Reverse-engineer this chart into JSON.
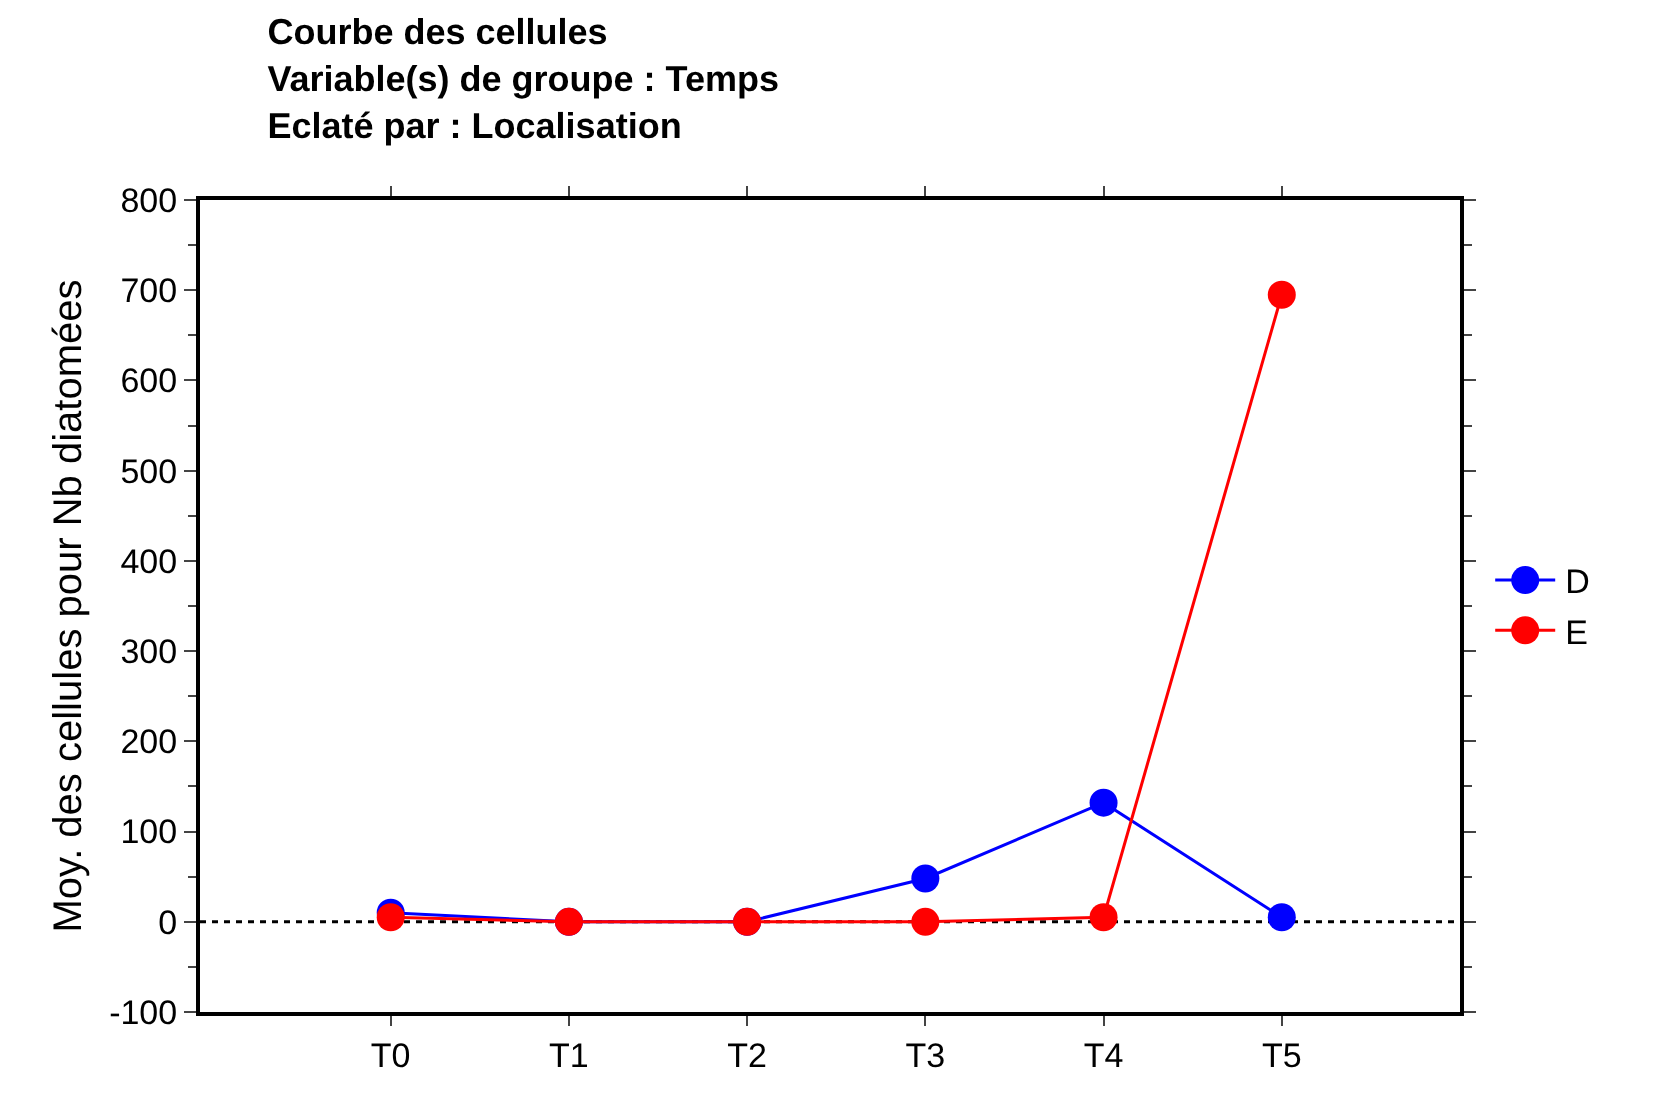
{
  "chart_data": {
    "type": "line",
    "title": "Courbe des cellules\nVariable(s) de groupe : Temps\nEclaté par : Localisation",
    "ylabel": "Moy. des cellules pour Nb diatomées",
    "categories": [
      "T0",
      "T1",
      "T2",
      "T3",
      "T4",
      "T5"
    ],
    "series": [
      {
        "name": "D",
        "color": "#0000ff",
        "values": [
          10,
          0,
          0,
          48,
          132,
          5
        ]
      },
      {
        "name": "E",
        "color": "#ff0000",
        "values": [
          5,
          0,
          0,
          0,
          5,
          695
        ]
      }
    ],
    "ylim": [
      -100,
      800
    ],
    "yticks": [
      -100,
      0,
      100,
      200,
      300,
      400,
      500,
      600,
      700,
      800
    ],
    "ref_lines": [
      {
        "axis": "y",
        "value": 0,
        "color": "#000000",
        "line_style": "dotted"
      }
    ],
    "grid": false,
    "legend": "right",
    "marker": "circle",
    "line_style": "solid"
  }
}
